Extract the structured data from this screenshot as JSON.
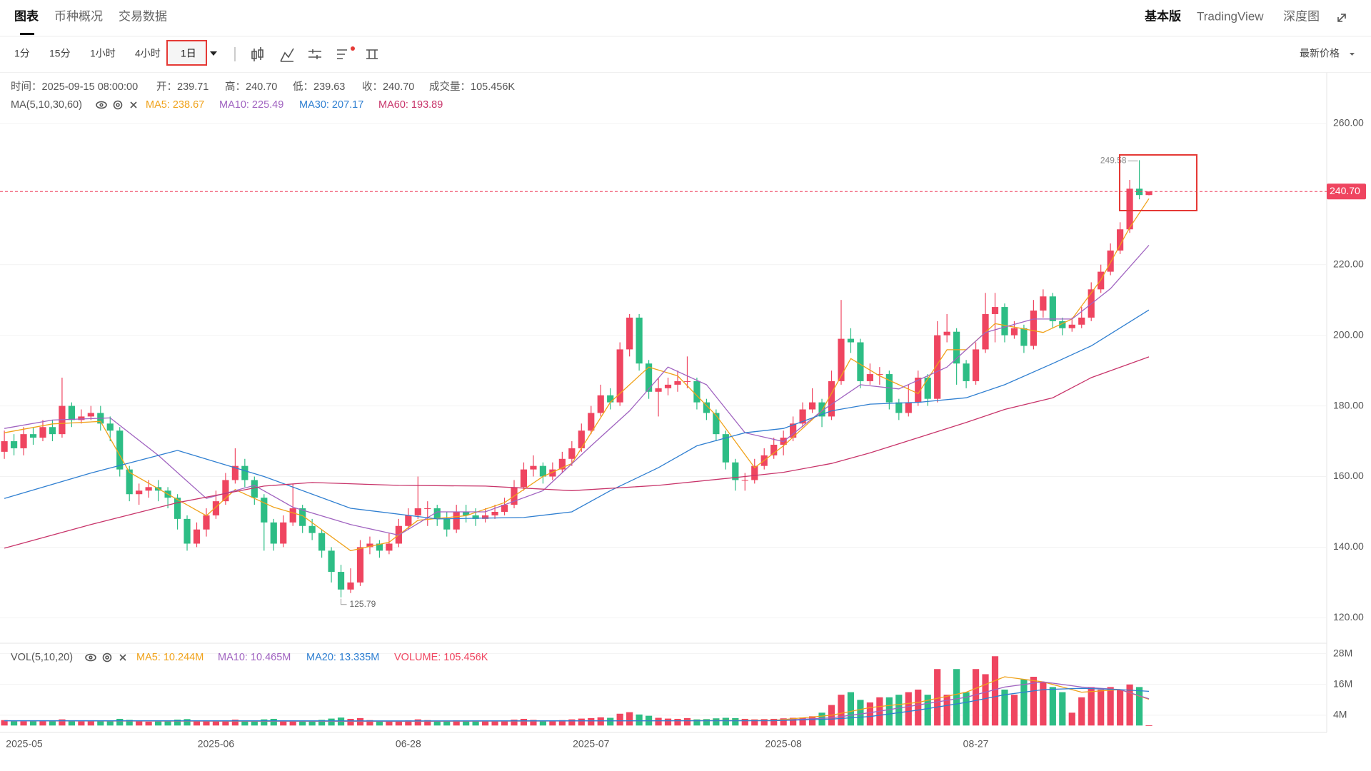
{
  "tabs": [
    "图表",
    "币种概况",
    "交易数据"
  ],
  "right_tabs": [
    "基本版",
    "TradingView",
    "深度图"
  ],
  "intervals": [
    "1分",
    "15分",
    "1小时",
    "4小时",
    "1日"
  ],
  "price_type": "最新价格",
  "chart_data": {
    "type": "candlestick",
    "info": [
      "时间：2025-09-15 08:00:00",
      "开：239.71",
      "高：240.70",
      "低：239.63",
      "收：240.70",
      "成交量：105.456K"
    ],
    "ma_title": "MA(5,10,30,60)",
    "vol_title": "VOL(5,10,20)",
    "vol_label": "VOLUME: 105.456K",
    "up_color": "#ef4560",
    "down_color": "#2dbd85",
    "grid": true,
    "ylim": [
      113,
      274.4
    ],
    "yticks": [
      {
        "value": 260,
        "label": "260.00"
      },
      {
        "value": 220,
        "label": "220.00"
      },
      {
        "value": 200,
        "label": "200.00"
      },
      {
        "value": 180,
        "label": "180.00"
      },
      {
        "value": 160,
        "label": "160.00"
      },
      {
        "value": 140,
        "label": "140.00"
      },
      {
        "value": 120,
        "label": "120.00"
      }
    ],
    "vol_ylim": [
      -2.7,
      31.8
    ],
    "vol_yticks": [
      {
        "value": 28,
        "label": "28M"
      },
      {
        "value": 16,
        "label": "16M"
      },
      {
        "value": 4,
        "label": "4M"
      }
    ],
    "last_price": {
      "value": 240.7,
      "label": "240.70"
    },
    "high_label": {
      "value": 249.58,
      "label": "249.58"
    },
    "low_label": {
      "value": 125.79,
      "label": "125.79"
    },
    "categories": [
      null,
      null,
      "2025-05",
      null,
      null,
      null,
      null,
      null,
      null,
      null,
      null,
      null,
      null,
      null,
      null,
      null,
      null,
      null,
      null,
      null,
      null,
      null,
      "2025-06",
      null,
      null,
      null,
      null,
      null,
      null,
      null,
      null,
      null,
      null,
      null,
      null,
      null,
      null,
      null,
      null,
      null,
      null,
      null,
      "06-28",
      null,
      null,
      null,
      null,
      null,
      null,
      null,
      null,
      null,
      null,
      null,
      null,
      null,
      null,
      null,
      null,
      null,
      null,
      "2025-07",
      null,
      null,
      null,
      null,
      null,
      null,
      null,
      null,
      null,
      null,
      null,
      null,
      null,
      null,
      null,
      null,
      null,
      null,
      null,
      "2025-08",
      null,
      null,
      null,
      null,
      null,
      null,
      null,
      null,
      null,
      null,
      null,
      null,
      null,
      null,
      null,
      null,
      null,
      null,
      null,
      "08-27",
      null,
      null,
      null,
      null,
      null,
      null,
      null,
      null,
      null,
      null,
      null,
      null,
      null,
      null,
      null,
      null,
      null,
      null
    ],
    "candles": [
      [
        167,
        173,
        165,
        170
      ],
      [
        170,
        172,
        166,
        168
      ],
      [
        168,
        174,
        166,
        172
      ],
      [
        172,
        174,
        169,
        171
      ],
      [
        171,
        176,
        170,
        174
      ],
      [
        174,
        176,
        170,
        172
      ],
      [
        172,
        188,
        171,
        180
      ],
      [
        180,
        181,
        174,
        176
      ],
      [
        176,
        179,
        175,
        177
      ],
      [
        177,
        180,
        176,
        178
      ],
      [
        178,
        180,
        173,
        175
      ],
      [
        175,
        177,
        170,
        173
      ],
      [
        173,
        174,
        160,
        162
      ],
      [
        162,
        163,
        153,
        155
      ],
      [
        155,
        158,
        152,
        156
      ],
      [
        156,
        159,
        154,
        157
      ],
      [
        157,
        159,
        153,
        156
      ],
      [
        156,
        157,
        151,
        154
      ],
      [
        154,
        155,
        145,
        148
      ],
      [
        148,
        149,
        139,
        141
      ],
      [
        141,
        147,
        140,
        145
      ],
      [
        145,
        151,
        143,
        149
      ],
      [
        149,
        156,
        148,
        153
      ],
      [
        153,
        161,
        152,
        159
      ],
      [
        159,
        168,
        158,
        163
      ],
      [
        163,
        165,
        157,
        159
      ],
      [
        159,
        160,
        152,
        154
      ],
      [
        154,
        155,
        139,
        147
      ],
      [
        147,
        148,
        139,
        141
      ],
      [
        141,
        149,
        140,
        147
      ],
      [
        147,
        158,
        146,
        151
      ],
      [
        151,
        152,
        144,
        146
      ],
      [
        146,
        148,
        142,
        144
      ],
      [
        144,
        145,
        137,
        139
      ],
      [
        139,
        140,
        130,
        133
      ],
      [
        133,
        135,
        125.79,
        128
      ],
      [
        128,
        134,
        127,
        130
      ],
      [
        130,
        142,
        129,
        140
      ],
      [
        140,
        143,
        138,
        141
      ],
      [
        141,
        142,
        137,
        139
      ],
      [
        139,
        144,
        138,
        141
      ],
      [
        141,
        148,
        140,
        146
      ],
      [
        146,
        151,
        145,
        149
      ],
      [
        149,
        160,
        148,
        151
      ],
      [
        151,
        153,
        146,
        151
      ],
      [
        151,
        152,
        146,
        148
      ],
      [
        148,
        150,
        143,
        145
      ],
      [
        145,
        152,
        144,
        150
      ],
      [
        150,
        152,
        147,
        149
      ],
      [
        149,
        151,
        146,
        148
      ],
      [
        148,
        151,
        147,
        149
      ],
      [
        149,
        152,
        148,
        150
      ],
      [
        150,
        154,
        149,
        152
      ],
      [
        152,
        159,
        151,
        157
      ],
      [
        157,
        164,
        156,
        162
      ],
      [
        162,
        166,
        160,
        163
      ],
      [
        163,
        164,
        158,
        160
      ],
      [
        160,
        164,
        159,
        162
      ],
      [
        162,
        167,
        161,
        165
      ],
      [
        165,
        170,
        163,
        168
      ],
      [
        168,
        175,
        167,
        173
      ],
      [
        173,
        180,
        172,
        178
      ],
      [
        178,
        186,
        177,
        183
      ],
      [
        183,
        185,
        179,
        181
      ],
      [
        181,
        198,
        180,
        196
      ],
      [
        196,
        206,
        194,
        205
      ],
      [
        205,
        206,
        190,
        192
      ],
      [
        192,
        193,
        182,
        184
      ],
      [
        184,
        188,
        177,
        185
      ],
      [
        185,
        188,
        183,
        186
      ],
      [
        186,
        190,
        184,
        187
      ],
      [
        187,
        194,
        185,
        187
      ],
      [
        187,
        188,
        179,
        181
      ],
      [
        181,
        182,
        176,
        178
      ],
      [
        178,
        179,
        170,
        172
      ],
      [
        172,
        173,
        162,
        164
      ],
      [
        164,
        165,
        156,
        159
      ],
      [
        159,
        161,
        156,
        159
      ],
      [
        159,
        165,
        158,
        163
      ],
      [
        163,
        168,
        162,
        166
      ],
      [
        166,
        171,
        165,
        169
      ],
      [
        169,
        173,
        166,
        171
      ],
      [
        171,
        177,
        170,
        175
      ],
      [
        175,
        181,
        174,
        179
      ],
      [
        179,
        185,
        178,
        181
      ],
      [
        181,
        182,
        174,
        177
      ],
      [
        177,
        190,
        176,
        187
      ],
      [
        187,
        210,
        186,
        199
      ],
      [
        199,
        202,
        195,
        198
      ],
      [
        198,
        199,
        185,
        187
      ],
      [
        187,
        192,
        186,
        189
      ],
      [
        189,
        191,
        186,
        189
      ],
      [
        189,
        190,
        179,
        181
      ],
      [
        181,
        182,
        176,
        178
      ],
      [
        178,
        186,
        177,
        181
      ],
      [
        181,
        190,
        180,
        188
      ],
      [
        188,
        189,
        180,
        182
      ],
      [
        182,
        204,
        181,
        200
      ],
      [
        200,
        206,
        198,
        201
      ],
      [
        201,
        202,
        186,
        192
      ],
      [
        192,
        193,
        185,
        187
      ],
      [
        187,
        198,
        186,
        196
      ],
      [
        196,
        212,
        195,
        206
      ],
      [
        206,
        212,
        198,
        208
      ],
      [
        208,
        209,
        198,
        200
      ],
      [
        200,
        204,
        199,
        202
      ],
      [
        202,
        203,
        195,
        197
      ],
      [
        197,
        210,
        196,
        207
      ],
      [
        207,
        213,
        205,
        211
      ],
      [
        211,
        212,
        202,
        204
      ],
      [
        204,
        205,
        200,
        202
      ],
      [
        202,
        205,
        201,
        203
      ],
      [
        203,
        208,
        202,
        205
      ],
      [
        205,
        215,
        204,
        213
      ],
      [
        213,
        220,
        212,
        218
      ],
      [
        218,
        226,
        217,
        224
      ],
      [
        224,
        232,
        223,
        230
      ],
      [
        230,
        244,
        229,
        241.5
      ],
      [
        241.5,
        249.58,
        238.5,
        239.71
      ],
      [
        239.71,
        240.7,
        239.63,
        240.7
      ]
    ],
    "volumes": [
      2.1,
      1.8,
      1.6,
      2.0,
      1.7,
      1.9,
      2.4,
      1.8,
      1.6,
      1.7,
      1.9,
      1.8,
      2.6,
      2.2,
      1.7,
      1.5,
      1.6,
      1.8,
      2.3,
      2.5,
      1.9,
      1.7,
      1.6,
      2.0,
      2.3,
      1.8,
      1.9,
      2.4,
      2.6,
      2.0,
      1.9,
      1.7,
      1.8,
      2.2,
      2.7,
      3.1,
      2.6,
      2.9,
      2.1,
      1.8,
      1.7,
      1.9,
      2.0,
      2.4,
      2.1,
      1.8,
      1.7,
      2.0,
      1.8,
      1.6,
      1.7,
      1.8,
      1.9,
      2.3,
      2.6,
      2.2,
      1.9,
      2.0,
      2.1,
      2.4,
      2.7,
      2.9,
      3.2,
      3.0,
      4.6,
      5.2,
      4.3,
      3.8,
      3.0,
      2.7,
      2.6,
      2.9,
      2.4,
      2.5,
      2.8,
      3.0,
      2.9,
      2.6,
      2.4,
      2.5,
      2.6,
      2.8,
      3.0,
      3.1,
      3.6,
      5,
      8,
      12,
      13,
      10,
      9,
      11,
      11,
      12,
      13,
      14,
      12,
      22,
      12,
      22,
      13,
      22,
      20,
      27,
      14,
      12,
      18,
      19,
      17,
      15,
      13,
      5,
      11,
      15,
      14,
      15,
      14,
      16,
      15,
      0.105456
    ],
    "ma_lines": [
      {
        "label": "MA5: 238.67",
        "color": "#f0a21a",
        "x": [
          0,
          5,
          10,
          13,
          17,
          21,
          24,
          28,
          31,
          36,
          40,
          43,
          48,
          52,
          56,
          59,
          63,
          67,
          70,
          74,
          78,
          81,
          85,
          88,
          91,
          95,
          98,
          100,
          103,
          108,
          111,
          114,
          117,
          119
        ],
        "values": [
          172.4,
          174.9,
          175.6,
          161.2,
          155,
          148.9,
          156.3,
          151.3,
          148.9,
          139,
          141.4,
          147.6,
          148.9,
          152.6,
          160,
          163.7,
          181,
          191,
          188.5,
          177.3,
          162.5,
          168.7,
          178.6,
          193.4,
          188.5,
          183.5,
          195.9,
          195.9,
          203.3,
          200.8,
          204.6,
          215.7,
          230.5,
          238.67
        ]
      },
      {
        "label": "MA10: 225.49",
        "color": "#a063c0",
        "x": [
          0,
          5,
          11,
          16,
          21,
          26,
          30,
          36,
          41,
          45,
          50,
          56,
          61,
          65,
          69,
          73,
          77,
          81,
          85,
          89,
          93,
          98,
          102,
          107,
          111,
          115,
          119
        ],
        "values": [
          173.6,
          176,
          176.6,
          166,
          153.8,
          157.5,
          151.3,
          146.4,
          143.4,
          150,
          150,
          156,
          168.7,
          178.6,
          191,
          186,
          172.4,
          169.9,
          178.6,
          186,
          184.8,
          191,
          200.8,
          204.6,
          204.6,
          213.2,
          225.49
        ]
      },
      {
        "label": "MA30: 207.17",
        "color": "#2f7fd1",
        "x": [
          0,
          9,
          18,
          27,
          36,
          45,
          54,
          59,
          63,
          68,
          72,
          77,
          81,
          86,
          90,
          95,
          100,
          104,
          109,
          113,
          119
        ],
        "values": [
          153.8,
          161,
          167.4,
          160,
          151,
          148,
          148.4,
          150,
          156,
          162.5,
          168.7,
          172.4,
          173.6,
          178.6,
          180.5,
          181,
          182.3,
          186,
          192,
          197,
          207.17
        ]
      },
      {
        "label": "MA60: 193.89",
        "color": "#c8346a",
        "x": [
          0,
          9,
          18,
          27,
          32,
          41,
          50,
          59,
          68,
          77,
          81,
          86,
          90,
          95,
          100,
          104,
          109,
          113,
          119
        ],
        "values": [
          139.7,
          146.4,
          152.6,
          157.3,
          158.3,
          157.5,
          157.3,
          156,
          157.5,
          160,
          161.2,
          163.7,
          166.7,
          171,
          175.3,
          179,
          182.3,
          188,
          193.89
        ]
      }
    ],
    "vol_ma_lines": [
      {
        "label": "MA5: 10.244M",
        "color": "#f0a21a",
        "x": [
          0,
          40,
          80,
          86,
          90,
          95,
          100,
          104,
          108,
          112,
          116,
          119
        ],
        "values": [
          1.8,
          1.6,
          2.0,
          4,
          7,
          9,
          13,
          19,
          17,
          13,
          14,
          10.244
        ]
      },
      {
        "label": "MA10: 10.465M",
        "color": "#a063c0",
        "x": [
          0,
          40,
          80,
          86,
          90,
          95,
          100,
          104,
          108,
          112,
          116,
          119
        ],
        "values": [
          1.8,
          1.7,
          1.9,
          3,
          5,
          8,
          11,
          15,
          17,
          15,
          14,
          10.465
        ]
      },
      {
        "label": "MA20: 13.335M",
        "color": "#2f7fd1",
        "x": [
          0,
          40,
          80,
          86,
          90,
          95,
          100,
          104,
          108,
          112,
          116,
          119
        ],
        "values": [
          1.9,
          1.8,
          1.9,
          2.5,
          3.5,
          6,
          9,
          12,
          14,
          14.5,
          14,
          13.335
        ]
      }
    ]
  }
}
